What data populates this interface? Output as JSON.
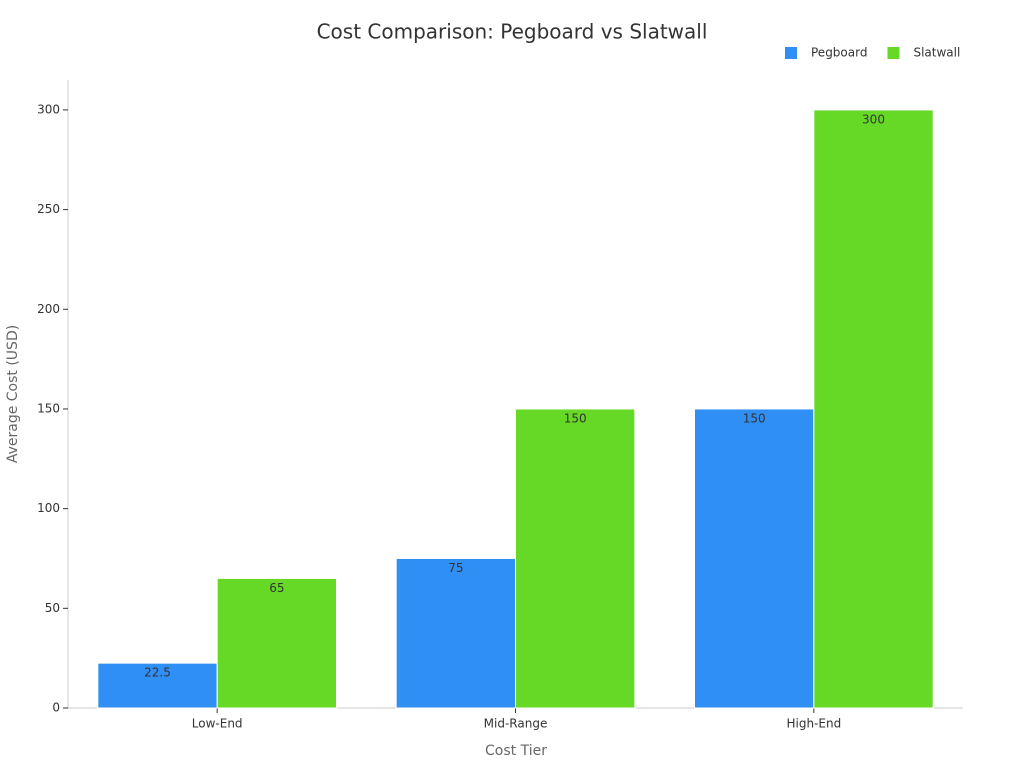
{
  "chart_data": {
    "type": "bar",
    "title": "Cost Comparison: Pegboard vs Slatwall",
    "x_label": "Cost Tier",
    "y_label": "Average Cost (USD)",
    "categories": [
      "Low-End",
      "Mid-Range",
      "High-End"
    ],
    "series": [
      {
        "name": "Pegboard",
        "color": "#2f8ff5",
        "values": [
          22.5,
          75,
          150
        ]
      },
      {
        "name": "Slatwall",
        "color": "#66d926",
        "values": [
          65,
          150,
          300
        ]
      }
    ],
    "ylim": [
      0,
      315
    ],
    "yticks": [
      0,
      50,
      100,
      150,
      200,
      250,
      300
    ],
    "legend": "upper right",
    "grid": false
  }
}
